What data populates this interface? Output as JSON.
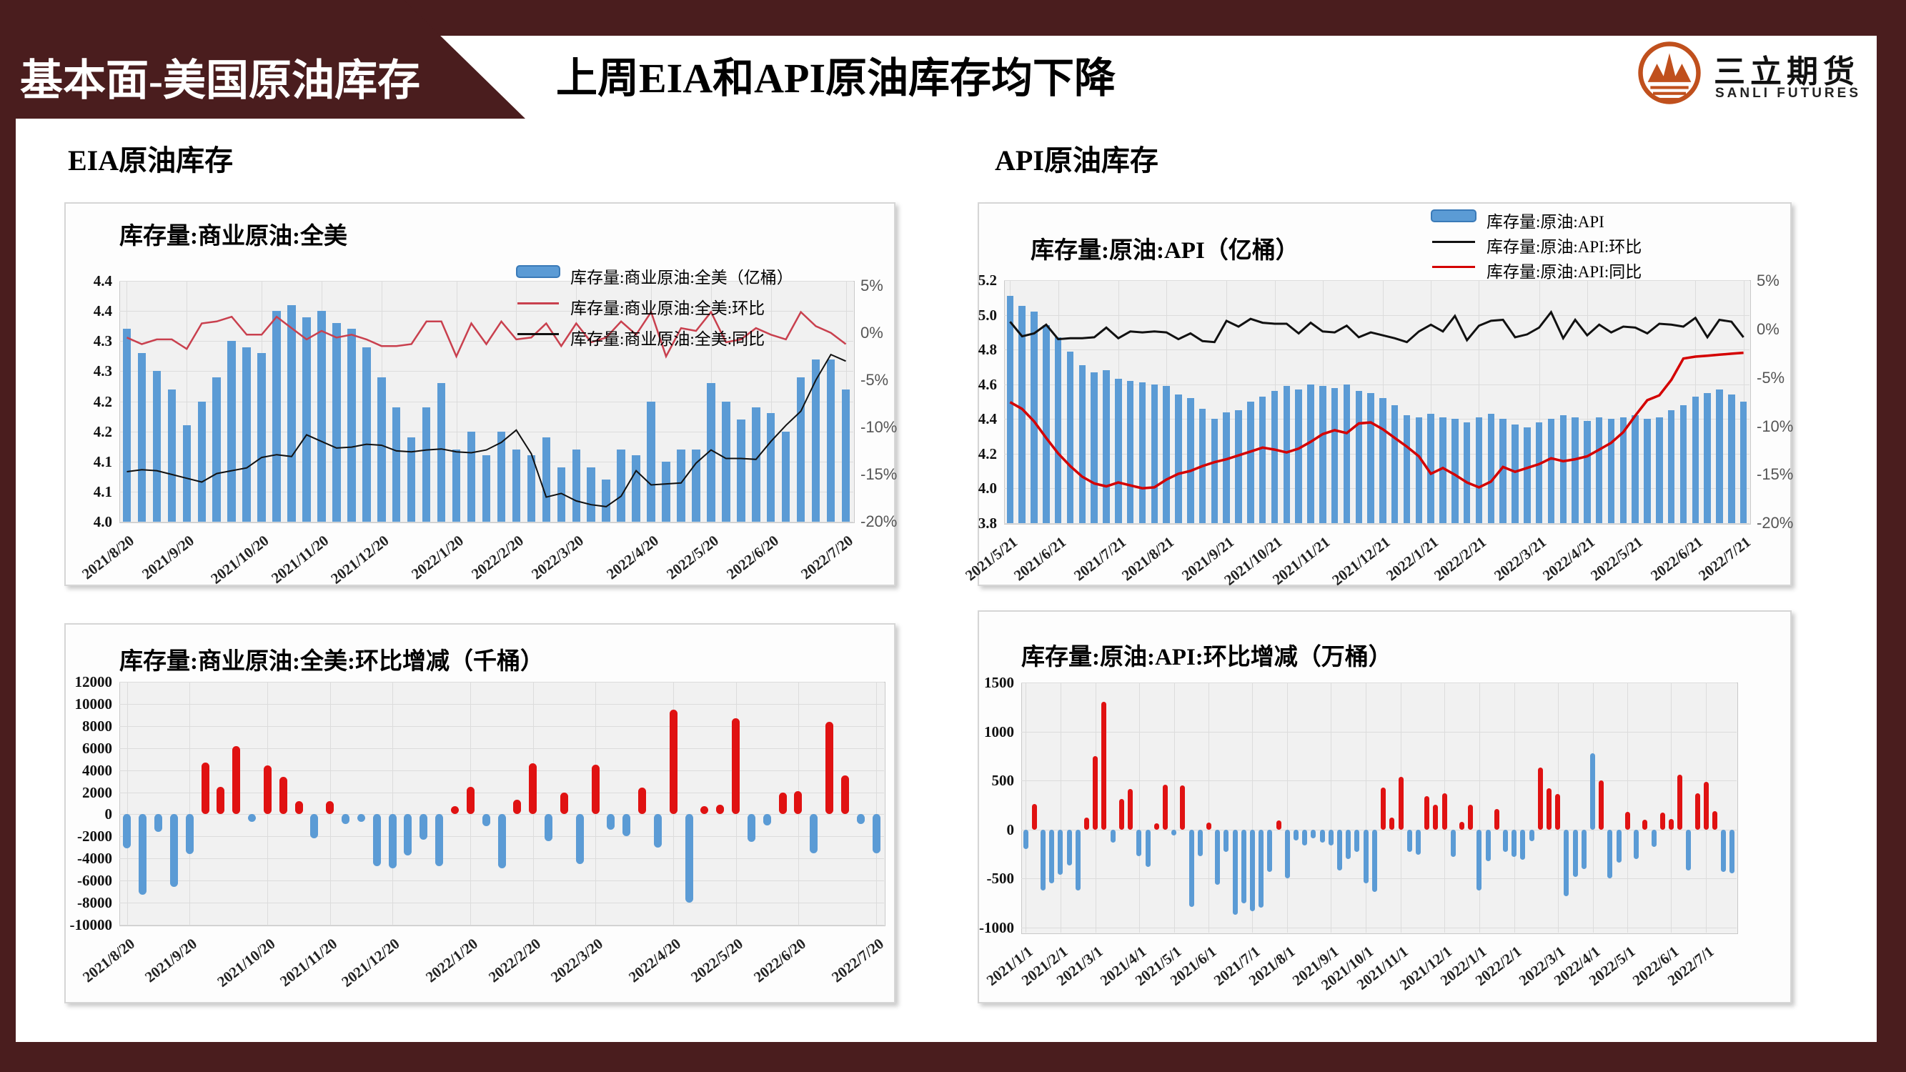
{
  "header": {
    "tab_label": "基本面-美国原油库存",
    "title": "上周EIA和API原油库存均下降",
    "logo_cn": "三立期货",
    "logo_en": "SANLI FUTURES"
  },
  "sections": {
    "left_label": "EIA原油库存",
    "right_label": "API原油库存"
  },
  "colors": {
    "maroon": "#4A1D1E",
    "bar_blue": "#5B9BD5",
    "bar_blue_border": "#3A7AB8",
    "bar_red": "#E01212",
    "eia_wow_line": "#C9404E",
    "eia_yoy_line": "#111111",
    "api_wow_line": "#111111",
    "api_yoy_line": "#D40000",
    "logo_orange": "#C0501D"
  },
  "chart_data": [
    {
      "id": "eia-level",
      "type": "bar",
      "title": "库存量:商业原油:全美",
      "legend": [
        "库存量:商业原油:全美（亿桶）",
        "库存量:商业原油:全美:环比",
        "库存量:商业原油:全美:同比"
      ],
      "left_ylim": [
        4.0,
        4.4
      ],
      "left_tick_labels": [
        "4.4",
        "4.4",
        "4.3",
        "4.3",
        "4.2",
        "4.2",
        "4.1",
        "4.1",
        "4.0"
      ],
      "right_ylim": [
        -20,
        5.5
      ],
      "right_tick_values": [
        5,
        0,
        -5,
        -10,
        -15,
        -20
      ],
      "right_tick_labels": [
        "5%",
        "0%",
        "-5%",
        "-10%",
        "-15%",
        "-20%"
      ],
      "x_tick_labels": [
        "2021/8/20",
        "2021/9/20",
        "2021/10/20",
        "2021/11/20",
        "2021/12/20",
        "2022/1/20",
        "2022/2/20",
        "2022/3/20",
        "2022/4/20",
        "2022/5/20",
        "2022/6/20",
        "2022/7/20"
      ],
      "x_tick_indices": [
        0,
        4,
        9,
        13,
        17,
        22,
        26,
        30,
        35,
        39,
        43,
        48
      ],
      "bars": [
        4.32,
        4.28,
        4.25,
        4.22,
        4.16,
        4.2,
        4.24,
        4.3,
        4.29,
        4.28,
        4.35,
        4.36,
        4.34,
        4.35,
        4.33,
        4.32,
        4.29,
        4.24,
        4.19,
        4.14,
        4.19,
        4.23,
        4.12,
        4.15,
        4.11,
        4.15,
        4.12,
        4.11,
        4.14,
        4.09,
        4.12,
        4.09,
        4.07,
        4.12,
        4.11,
        4.2,
        4.1,
        4.12,
        4.12,
        4.23,
        4.2,
        4.17,
        4.19,
        4.18,
        4.15,
        4.24,
        4.27,
        4.27,
        4.22
      ],
      "series": [
        {
          "name": "环比",
          "color_key": "eia_wow_line",
          "width": 2.5,
          "values": [
            -0.5,
            -1.2,
            -0.7,
            -0.7,
            -1.7,
            1.0,
            1.2,
            1.7,
            -0.2,
            -0.2,
            1.7,
            0.5,
            -0.7,
            0.2,
            -0.5,
            -0.2,
            -0.7,
            -1.4,
            -1.4,
            -1.2,
            1.2,
            1.2,
            -2.5,
            1.0,
            -1.2,
            1.2,
            -0.7,
            -0.5,
            1.0,
            -1.4,
            1.0,
            -1.0,
            -0.5,
            1.2,
            -0.2,
            2.2,
            -2.5,
            0.5,
            0.2,
            2.2,
            -1.0,
            -0.7,
            0.5,
            -0.2,
            -0.7,
            2.2,
            0.7,
            0.0,
            -1.2
          ]
        },
        {
          "name": "同比",
          "color_key": "eia_yoy_line",
          "width": 2,
          "values": [
            -14.7,
            -14.5,
            -14.6,
            -15.0,
            -15.4,
            -15.8,
            -14.9,
            -14.6,
            -14.3,
            -13.2,
            -12.9,
            -13.1,
            -10.8,
            -11.5,
            -12.2,
            -12.1,
            -11.8,
            -11.9,
            -12.5,
            -12.6,
            -12.4,
            -12.3,
            -12.6,
            -12.7,
            -12.4,
            -11.6,
            -10.3,
            -12.8,
            -17.4,
            -17.0,
            -17.8,
            -18.2,
            -18.4,
            -17.3,
            -14.6,
            -16.1,
            -16.0,
            -15.9,
            -13.8,
            -12.4,
            -13.3,
            -13.3,
            -13.4,
            -11.5,
            -9.8,
            -8.3,
            -5.0,
            -2.3,
            -3.0
          ]
        }
      ]
    },
    {
      "id": "eia-wow",
      "type": "bar",
      "title": "库存量:商业原油:全美:环比增减（千桶）",
      "ylim": [
        12000,
        -10000
      ],
      "y_ticks": [
        12000,
        10000,
        8000,
        6000,
        4000,
        2000,
        0,
        -2000,
        -4000,
        -6000,
        -8000,
        -10000
      ],
      "x_tick_labels": [
        "2021/8/20",
        "2021/9/20",
        "2021/10/20",
        "2021/11/20",
        "2021/12/20",
        "2022/1/20",
        "2022/2/20",
        "2022/3/20",
        "2022/4/20",
        "2022/5/20",
        "2022/6/20",
        "2022/7/20"
      ],
      "x_tick_indices": [
        0,
        4,
        9,
        13,
        17,
        22,
        26,
        30,
        35,
        39,
        43,
        48
      ],
      "values": [
        -3100,
        -7300,
        -1600,
        -6600,
        -3600,
        4700,
        2500,
        6200,
        -500,
        4400,
        3400,
        1200,
        -2200,
        1200,
        -900,
        -300,
        -4700,
        -4900,
        -3700,
        -2300,
        -4700,
        700,
        2500,
        -1100,
        -4900,
        1300,
        4600,
        -2400,
        2000,
        -4500,
        4500,
        -1400,
        -2000,
        2400,
        -3000,
        9500,
        -8000,
        600,
        900,
        8700,
        -2500,
        -1000,
        2000,
        2100,
        -3500,
        8400,
        3500,
        -900,
        -3500
      ]
    },
    {
      "id": "api-level",
      "type": "bar",
      "title": "库存量:原油:API（亿桶）",
      "legend": [
        "库存量:原油:API",
        "库存量:原油:API:环比",
        "库存量:原油:API:同比"
      ],
      "left_ylim": [
        3.8,
        5.2
      ],
      "left_tick_labels": [
        "5.2",
        "5.0",
        "4.8",
        "4.6",
        "4.4",
        "4.2",
        "4.0",
        "3.8"
      ],
      "right_ylim": [
        -20,
        5.1
      ],
      "right_tick_values": [
        5,
        0,
        -5,
        -10,
        -15,
        -20
      ],
      "right_tick_labels": [
        "5%",
        "0%",
        "-5%",
        "-10%",
        "-15%",
        "-20%"
      ],
      "x_tick_labels": [
        "2021/5/21",
        "2021/6/21",
        "2021/7/21",
        "2021/8/21",
        "2021/9/21",
        "2021/10/21",
        "2021/11/21",
        "2021/12/21",
        "2022/1/21",
        "2022/2/21",
        "2022/3/21",
        "2022/4/21",
        "2022/5/21",
        "2022/6/21",
        "2022/7/21"
      ],
      "x_tick_indices": [
        0,
        4,
        9,
        13,
        18,
        22,
        26,
        31,
        35,
        39,
        44,
        48,
        52,
        57,
        61
      ],
      "bars": [
        5.11,
        5.05,
        5.02,
        4.94,
        4.87,
        4.79,
        4.71,
        4.67,
        4.68,
        4.63,
        4.62,
        4.61,
        4.6,
        4.59,
        4.54,
        4.52,
        4.46,
        4.4,
        4.44,
        4.45,
        4.5,
        4.53,
        4.56,
        4.59,
        4.57,
        4.6,
        4.59,
        4.58,
        4.6,
        4.56,
        4.55,
        4.52,
        4.48,
        4.42,
        4.41,
        4.43,
        4.41,
        4.4,
        4.38,
        4.41,
        4.43,
        4.4,
        4.37,
        4.35,
        4.38,
        4.4,
        4.42,
        4.41,
        4.39,
        4.41,
        4.4,
        4.41,
        4.42,
        4.4,
        4.41,
        4.45,
        4.48,
        4.53,
        4.55,
        4.57,
        4.54,
        4.5
      ],
      "series": [
        {
          "name": "环比",
          "color_key": "api_wow_line",
          "width": 3,
          "values": [
            0.8,
            -0.7,
            -0.4,
            0.5,
            -1.0,
            -0.9,
            -0.9,
            -0.8,
            0.2,
            -0.9,
            -0.2,
            -0.3,
            -0.2,
            -0.3,
            -1.0,
            -0.4,
            -1.2,
            -1.3,
            0.9,
            0.3,
            1.1,
            0.7,
            0.6,
            0.6,
            -0.4,
            0.7,
            -0.2,
            -0.3,
            0.4,
            -0.8,
            -0.3,
            -0.6,
            -0.9,
            -1.3,
            -0.2,
            0.5,
            -0.2,
            1.4,
            -1.1,
            0.4,
            0.9,
            1.0,
            -0.8,
            -0.5,
            0.2,
            1.8,
            -0.9,
            1.0,
            -0.6,
            0.5,
            -0.3,
            0.3,
            0.2,
            -0.4,
            0.6,
            0.5,
            0.3,
            1.2,
            -0.8,
            1.0,
            0.8,
            -0.8
          ]
        },
        {
          "name": "同比",
          "color_key": "api_yoy_line",
          "width": 3.5,
          "values": [
            -7.5,
            -8.2,
            -9.5,
            -11.2,
            -12.8,
            -14.1,
            -15.2,
            -15.9,
            -16.2,
            -15.8,
            -16.1,
            -16.4,
            -16.3,
            -15.5,
            -14.9,
            -14.6,
            -14.1,
            -13.7,
            -13.4,
            -13.0,
            -12.6,
            -12.2,
            -12.4,
            -12.7,
            -12.3,
            -11.6,
            -10.8,
            -10.4,
            -10.7,
            -9.7,
            -9.6,
            -10.3,
            -11.2,
            -12.1,
            -13.1,
            -14.9,
            -14.3,
            -15.0,
            -15.8,
            -16.3,
            -15.7,
            -14.2,
            -14.7,
            -14.3,
            -13.9,
            -13.3,
            -13.6,
            -13.4,
            -13.1,
            -12.4,
            -11.7,
            -10.6,
            -8.9,
            -7.3,
            -6.8,
            -5.2,
            -3.0,
            -2.8,
            -2.7,
            -2.6,
            -2.5,
            -2.4
          ]
        }
      ]
    },
    {
      "id": "api-wow",
      "type": "bar",
      "title": "库存量:原油:API:环比增减（万桶）",
      "ylim": [
        1500,
        -1052
      ],
      "y_ticks": [
        1500,
        1000,
        500,
        0,
        -500,
        -1000
      ],
      "x_tick_labels": [
        "2021/1/1",
        "2021/2/1",
        "2021/3/1",
        "2021/4/1",
        "2021/5/1",
        "2021/6/1",
        "2021/7/1",
        "2021/8/1",
        "2021/9/1",
        "2021/10/1",
        "2021/11/1",
        "2021/12/1",
        "2022/1/1",
        "2022/2/1",
        "2022/3/1",
        "2022/4/1",
        "2022/5/1",
        "2022/6/1",
        "2022/7/1"
      ],
      "x_tick_indices": [
        0,
        4,
        8,
        13,
        17,
        21,
        26,
        30,
        35,
        39,
        43,
        48,
        52,
        56,
        61,
        65,
        69,
        74,
        78
      ],
      "blue_positive_indices": [
        65
      ],
      "values": [
        -200,
        260,
        -620,
        -550,
        -460,
        -370,
        -620,
        120,
        750,
        1300,
        -130,
        310,
        410,
        -270,
        -380,
        60,
        460,
        -60,
        450,
        -790,
        -270,
        70,
        -560,
        -230,
        -870,
        -750,
        -830,
        -800,
        -430,
        90,
        -500,
        -110,
        -160,
        -90,
        -130,
        -160,
        -420,
        -300,
        -230,
        -550,
        -640,
        430,
        120,
        540,
        -230,
        -260,
        340,
        250,
        370,
        -280,
        80,
        250,
        -620,
        -320,
        210,
        -230,
        -280,
        -310,
        -120,
        630,
        420,
        360,
        -680,
        -480,
        -400,
        780,
        500,
        -500,
        -340,
        180,
        -300,
        100,
        -180,
        170,
        110,
        560,
        -420,
        370,
        490,
        190,
        -430,
        -450
      ]
    }
  ]
}
